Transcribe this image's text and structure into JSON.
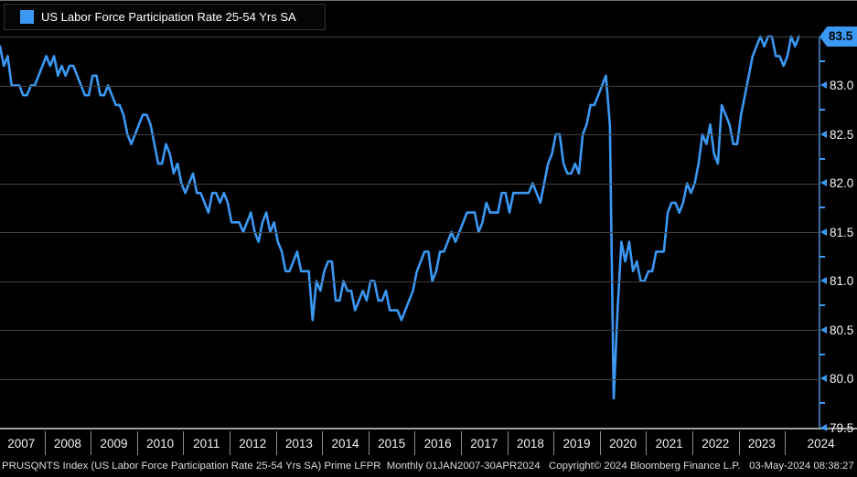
{
  "legend": {
    "series_label": "US Labor Force Participation Rate 25-54 Yrs SA",
    "swatch_icon": "blue-square"
  },
  "colors": {
    "line_blue": "#3b98f3",
    "badge_blue": "#3b98f3",
    "axis_blue": "#3c6d9c",
    "gridline": "#414141",
    "baseline_gray": "#9f9f9f",
    "text_white": "#ffffff",
    "badge_text": "#000000"
  },
  "y_axis": {
    "badge_label": "83.5",
    "labels": [
      "83.0",
      "82.5",
      "82.0",
      "81.5",
      "81.0",
      "80.5",
      "80.0",
      "79.5"
    ]
  },
  "x_axis": {
    "years": [
      "2007",
      "2008",
      "2009",
      "2010",
      "2011",
      "2012",
      "2013",
      "2014",
      "2015",
      "2016",
      "2017",
      "2018",
      "2019",
      "2020",
      "2021",
      "2022",
      "2023",
      "2024"
    ]
  },
  "footer": {
    "line": "PRUSQNTS Index (US Labor Force Participation Rate 25-54 Yrs SA) Prime LFPR  Monthly 01JAN2007-30APR2024   Copyright© 2024 Bloomberg Finance L.P.   03-May-2024 08:38:27"
  },
  "chart_data": {
    "type": "line",
    "title": "US Labor Force Participation Rate 25-54 Yrs SA",
    "frequency": "Monthly",
    "x_range": "01JAN2007-30APR2024",
    "x_year_labels": [
      "2007",
      "2008",
      "2009",
      "2010",
      "2011",
      "2012",
      "2013",
      "2014",
      "2015",
      "2016",
      "2017",
      "2018",
      "2019",
      "2020",
      "2021",
      "2022",
      "2023",
      "2024"
    ],
    "ylim": [
      79.5,
      83.5
    ],
    "y_major_ticks": [
      83.5,
      83.0,
      82.5,
      82.0,
      81.5,
      81.0,
      80.5,
      80.0,
      79.5
    ],
    "y_minor_step": 0.25,
    "grid": "horizontal-only",
    "legend_position": "top-left",
    "last_value": 83.5,
    "last_value_highlighted": true,
    "series": [
      {
        "name": "US Labor Force Participation Rate 25-54 Yrs SA",
        "color": "#3b98f3",
        "start": "2007-01",
        "end": "2024-04",
        "freq": "monthly",
        "values": [
          83.4,
          83.2,
          83.3,
          83.0,
          83.0,
          83.0,
          82.9,
          82.9,
          83.0,
          83.0,
          83.1,
          83.2,
          83.3,
          83.2,
          83.3,
          83.1,
          83.2,
          83.1,
          83.2,
          83.2,
          83.1,
          83.0,
          82.9,
          82.9,
          83.1,
          83.1,
          82.9,
          82.9,
          83.0,
          82.9,
          82.8,
          82.8,
          82.7,
          82.5,
          82.4,
          82.5,
          82.6,
          82.7,
          82.7,
          82.6,
          82.4,
          82.2,
          82.2,
          82.4,
          82.3,
          82.1,
          82.2,
          82.0,
          81.9,
          82.0,
          82.1,
          81.9,
          81.9,
          81.8,
          81.7,
          81.9,
          81.9,
          81.8,
          81.9,
          81.8,
          81.6,
          81.6,
          81.6,
          81.5,
          81.6,
          81.7,
          81.5,
          81.4,
          81.6,
          81.7,
          81.5,
          81.6,
          81.4,
          81.3,
          81.1,
          81.1,
          81.2,
          81.3,
          81.1,
          81.1,
          81.1,
          80.6,
          81.0,
          80.9,
          81.1,
          81.2,
          81.2,
          80.8,
          80.8,
          81.0,
          80.9,
          80.9,
          80.7,
          80.8,
          80.9,
          80.8,
          81.0,
          81.0,
          80.8,
          80.8,
          80.9,
          80.7,
          80.7,
          80.7,
          80.6,
          80.7,
          80.8,
          80.9,
          81.1,
          81.2,
          81.3,
          81.3,
          81.0,
          81.1,
          81.3,
          81.3,
          81.4,
          81.5,
          81.4,
          81.5,
          81.6,
          81.7,
          81.7,
          81.7,
          81.5,
          81.6,
          81.8,
          81.7,
          81.7,
          81.7,
          81.9,
          81.9,
          81.7,
          81.9,
          81.9,
          81.9,
          81.9,
          81.9,
          82.0,
          81.9,
          81.8,
          82.0,
          82.2,
          82.3,
          82.5,
          82.5,
          82.2,
          82.1,
          82.1,
          82.2,
          82.1,
          82.5,
          82.6,
          82.8,
          82.8,
          82.9,
          83.0,
          83.1,
          82.6,
          79.8,
          80.7,
          81.4,
          81.2,
          81.4,
          81.1,
          81.2,
          81.0,
          81.0,
          81.1,
          81.1,
          81.3,
          81.3,
          81.3,
          81.7,
          81.8,
          81.8,
          81.7,
          81.8,
          82.0,
          81.9,
          82.0,
          82.2,
          82.5,
          82.4,
          82.6,
          82.3,
          82.2,
          82.8,
          82.7,
          82.6,
          82.4,
          82.4,
          82.7,
          82.9,
          83.1,
          83.3,
          83.4,
          83.5,
          83.4,
          83.5,
          83.5,
          83.3,
          83.3,
          83.2,
          83.3,
          83.5,
          83.4,
          83.5
        ]
      }
    ]
  }
}
